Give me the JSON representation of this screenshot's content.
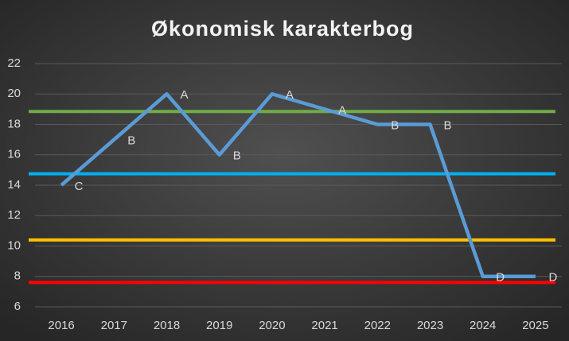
{
  "chart_data": {
    "type": "line",
    "title": "Økonomisk karakterbog",
    "categories": [
      "2016",
      "2017",
      "2018",
      "2019",
      "2020",
      "2021",
      "2022",
      "2023",
      "2024",
      "2025"
    ],
    "series": [
      {
        "color": "#5b9bd5",
        "values": [
          14,
          17,
          20,
          16,
          20,
          19,
          18,
          18,
          8,
          8
        ],
        "point_labels": [
          "C",
          "B",
          "A",
          "B",
          "A",
          "A",
          "B",
          "B",
          "D",
          "D"
        ]
      }
    ],
    "reference_lines": [
      {
        "value": 18.85,
        "color": "#70ad47"
      },
      {
        "value": 14.75,
        "color": "#00b0f0"
      },
      {
        "value": 10.4,
        "color": "#ffc000"
      },
      {
        "value": 7.6,
        "color": "#ff0000"
      }
    ],
    "ylim": [
      6,
      22
    ],
    "yticks": [
      6,
      8,
      10,
      12,
      14,
      16,
      18,
      20,
      22
    ],
    "grid": true
  }
}
